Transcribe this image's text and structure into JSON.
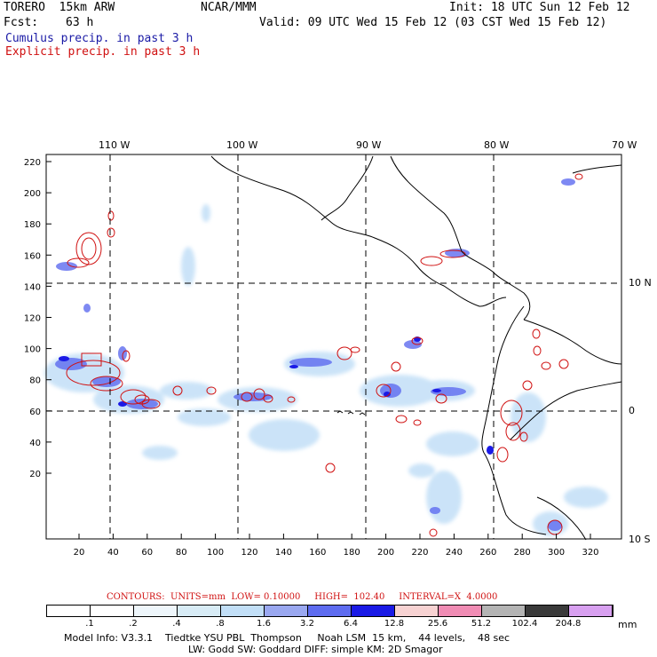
{
  "header": {
    "model": "TORERO  15km ARW",
    "center": "NCAR/MMM",
    "init": "Init: 18 UTC Sun 12 Feb 12",
    "fcst_label": "Fcst:",
    "fcst_value": "63 h",
    "valid": "Valid: 09 UTC Wed 15 Feb 12 (03 CST Wed 15 Feb 12)",
    "legend_cumulus": "Cumulus precip. in past 3 h",
    "legend_explicit": "Explicit precip. in past 3 h"
  },
  "colors": {
    "cumulus": "#1a1aa6",
    "explicit": "#d01010"
  },
  "map": {
    "top_lon_labels": [
      "110 W",
      "100 W",
      "90 W",
      "80 W",
      "70 W"
    ],
    "right_lat_labels": [
      "10 N",
      "0",
      "10 S"
    ],
    "y_ticks": [
      "220",
      "200",
      "180",
      "160",
      "140",
      "120",
      "100",
      "80",
      "60",
      "40",
      "20"
    ],
    "x_ticks": [
      "20",
      "40",
      "60",
      "80",
      "100",
      "120",
      "140",
      "160",
      "180",
      "200",
      "220",
      "240",
      "260",
      "280",
      "300",
      "320"
    ]
  },
  "contours_line": "CONTOURS:  UNITS=mm  LOW= 0.10000     HIGH=  102.40     INTERVAL=X  4.0000",
  "colorbar": {
    "labels": [
      ".1",
      ".2",
      ".4",
      ".8",
      "1.6",
      "3.2",
      "6.4",
      "12.8",
      "25.6",
      "51.2",
      "102.4",
      "204.8"
    ],
    "unit": "mm",
    "colors": [
      "#ffffff",
      "#ffffff",
      "#eef6fb",
      "#d8ecf6",
      "#c2dff7",
      "#9aa8f0",
      "#5e6cf0",
      "#1a1ae6",
      "#f7d2d2",
      "#f08cb4",
      "#b4b4b4",
      "#3a3a3a",
      "#d8a0f0"
    ]
  },
  "footer": {
    "line1": "Model Info: V3.3.1    Tiedtke YSU PBL  Thompson     Noah LSM  15 km,    44 levels,    48 sec",
    "line2": "LW: Godd SW: Goddard DIFF: simple KM: 2D Smagor"
  }
}
